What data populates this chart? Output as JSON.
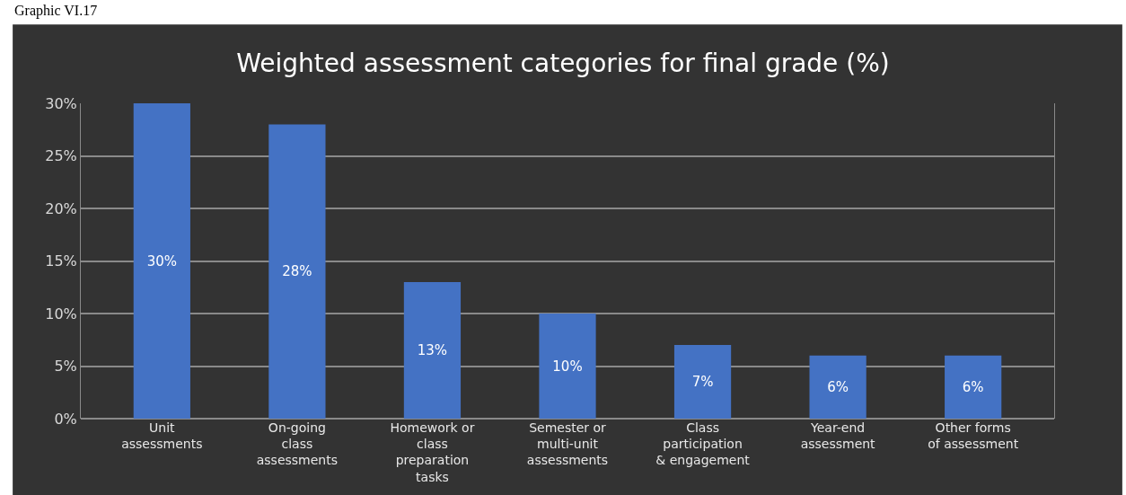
{
  "chart_data": {
    "type": "bar",
    "title": "Weighted assessment categories for final grade (%)",
    "annotations": [
      "Graphic VI.17"
    ],
    "categories": [
      "Unit assessments",
      "On-going class assessments",
      "Homework or class preparation tasks",
      "Semester or multi-unit assessments",
      "Class participation & engagement",
      "Year-end assessment",
      "Other forms of assessment"
    ],
    "values": [
      30,
      28,
      13,
      10,
      7,
      6,
      6
    ],
    "value_labels": [
      "30%",
      "28%",
      "13%",
      "10%",
      "7%",
      "6%",
      "6%"
    ],
    "color": "#4472c4",
    "ylim": [
      0,
      30
    ],
    "yticks": [
      {
        "value": 0,
        "label": "0%"
      },
      {
        "value": 5,
        "label": "5%"
      },
      {
        "value": 10,
        "label": "10%"
      },
      {
        "value": 15,
        "label": "15%"
      },
      {
        "value": 20,
        "label": "20%"
      },
      {
        "value": 25,
        "label": "25%"
      },
      {
        "value": 30,
        "label": "30%"
      }
    ],
    "grid": "y"
  }
}
